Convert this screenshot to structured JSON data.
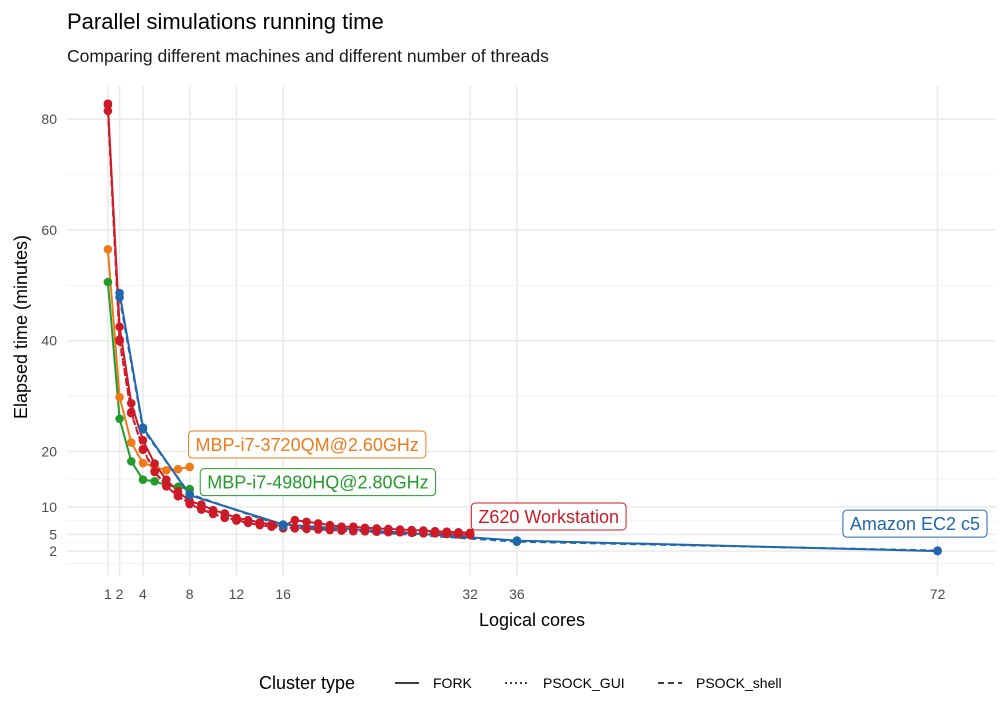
{
  "chart_data": {
    "type": "line",
    "title": "Parallel simulations running time",
    "subtitle": "Comparing different machines and different number of threads",
    "xlabel": "Logical cores",
    "ylabel": "Elapsed time (minutes)",
    "x_ticks": [
      1,
      2,
      4,
      8,
      12,
      16,
      32,
      36,
      72
    ],
    "y_ticks": [
      2,
      5,
      10,
      20,
      40,
      60,
      80
    ],
    "xlim": [
      -2.5,
      77
    ],
    "ylim": [
      -2.5,
      86
    ],
    "grid": true,
    "legend": {
      "title": "Cluster type",
      "position": "bottom",
      "items": [
        {
          "label": "FORK",
          "linetype": "solid"
        },
        {
          "label": "PSOCK_GUI",
          "linetype": "dotted"
        },
        {
          "label": "PSOCK_shell",
          "linetype": "dashed"
        }
      ]
    },
    "series": [
      {
        "name": "MBP-i7-3720QM@2.60GHz",
        "color": "#f07a18",
        "cluster": "FORK",
        "x": [
          1,
          2,
          3,
          4,
          5,
          6,
          7,
          8
        ],
        "y": [
          56.5,
          29.8,
          21.6,
          17.9,
          17.2,
          16.6,
          16.8,
          17.2
        ]
      },
      {
        "name": "MBP-i7-4980HQ@2.80GHz",
        "color": "#239b2b",
        "cluster": "FORK",
        "x": [
          1,
          2,
          3,
          4,
          5,
          6,
          7,
          8
        ],
        "y": [
          50.6,
          25.9,
          18.2,
          14.9,
          14.6,
          13.9,
          13.6,
          13.2
        ]
      },
      {
        "name": "Z620 Workstation",
        "color": "#cb1b29",
        "cluster": "FORK",
        "x": [
          1,
          2,
          3,
          4,
          5,
          6,
          7,
          8,
          9,
          10,
          11,
          12,
          13,
          14,
          15,
          16,
          17,
          18,
          19,
          20,
          21,
          22,
          23,
          24,
          25,
          26,
          27,
          28,
          29,
          30,
          31,
          32
        ],
        "y": [
          82.6,
          42.5,
          28.7,
          22.0,
          17.8,
          14.9,
          12.8,
          11.0,
          10.4,
          9.4,
          8.8,
          8.0,
          7.6,
          7.2,
          6.8,
          6.5,
          7.6,
          7.3,
          7.0,
          6.7,
          6.4,
          6.4,
          6.2,
          6.1,
          6.0,
          5.9,
          5.8,
          5.7,
          5.6,
          5.5,
          5.4,
          5.3
        ]
      },
      {
        "name": "Z620 Workstation",
        "color": "#cb1b29",
        "cluster": "PSOCK_GUI",
        "x": [
          1,
          2,
          3,
          4,
          5,
          6,
          7,
          8,
          9,
          10,
          11,
          12,
          13,
          14,
          15,
          16,
          17,
          18,
          19,
          20,
          21,
          22,
          23,
          24,
          25,
          26,
          27,
          28,
          29,
          30,
          31,
          32
        ],
        "y": [
          82.8,
          40.2,
          27.1,
          20.4,
          16.4,
          13.8,
          12.0,
          10.6,
          9.6,
          8.8,
          8.1,
          7.6,
          7.2,
          6.8,
          6.5,
          6.2,
          6.2,
          6.1,
          6.0,
          5.9,
          5.8,
          5.7,
          5.6,
          5.6,
          5.5,
          5.4,
          5.4,
          5.3,
          5.2,
          5.1,
          5.1,
          5.0
        ]
      },
      {
        "name": "Z620 Workstation",
        "color": "#cb1b29",
        "cluster": "PSOCK_shell",
        "x": [
          1,
          2,
          3,
          4,
          5,
          6,
          7,
          8,
          9,
          10,
          11,
          12,
          13,
          14,
          15,
          16,
          17,
          18,
          19,
          20,
          21,
          22,
          23,
          24,
          25,
          26,
          27,
          28,
          29,
          30,
          31,
          32
        ],
        "y": [
          81.5,
          39.9,
          26.9,
          20.3,
          16.3,
          13.7,
          11.9,
          10.5,
          9.5,
          8.7,
          8.0,
          7.5,
          7.1,
          6.7,
          6.4,
          6.1,
          6.1,
          6.0,
          5.9,
          5.8,
          5.7,
          5.6,
          5.6,
          5.5,
          5.4,
          5.4,
          5.3,
          5.2,
          5.2,
          5.1,
          5.0,
          4.9
        ]
      },
      {
        "name": "Amazon EC2 c5",
        "color": "#2167ac",
        "cluster": "FORK",
        "x": [
          2,
          4,
          8,
          16,
          36,
          72
        ],
        "y": [
          48.6,
          24.3,
          12.1,
          6.8,
          3.9,
          2.0
        ]
      },
      {
        "name": "Amazon EC2 c5",
        "color": "#2167ac",
        "cluster": "PSOCK_shell",
        "x": [
          2,
          4,
          8,
          16,
          36,
          72
        ],
        "y": [
          47.8,
          24.0,
          12.3,
          6.5,
          3.7,
          2.1
        ]
      }
    ],
    "annotations": [
      {
        "text": "MBP-i7-3720QM@2.60GHz",
        "color": "#f07a18",
        "x": 8.5,
        "y": 20.8
      },
      {
        "text": "MBP-i7-4980HQ@2.80GHz",
        "color": "#239b2b",
        "x": 9.5,
        "y": 14.0
      },
      {
        "text": "Z620 Workstation",
        "color": "#cb1b29",
        "x": 32.7,
        "y": 7.8
      },
      {
        "text": "Amazon EC2 c5",
        "color": "#2167ac",
        "x": 64.5,
        "y": 6.5
      }
    ]
  }
}
